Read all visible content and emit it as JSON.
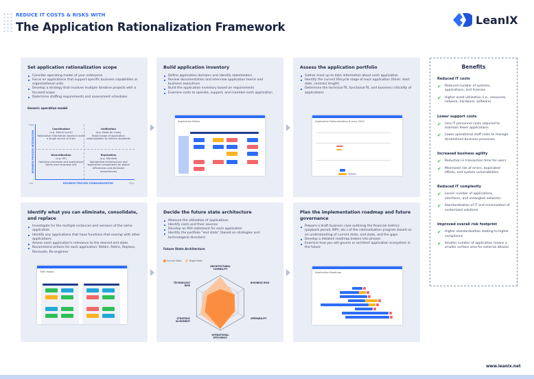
{
  "header": {
    "kicker": "REDUCE IT COSTS & RISKS WITH",
    "title": "The Application Rationalization Framework",
    "logo_text": "LeanIX",
    "accent": "#2e6cf6"
  },
  "panels": [
    {
      "title": "Set application rationalization scope",
      "bullets": [
        "Consider operating model of your enterprise",
        "Focus on applications that support specific business capabilities or organizational units",
        "Develop a strategy that involves multiple iterative projects with a focused scope",
        "Determine staffing requirements and assessment schedules"
      ],
      "sub": "Generic operation model",
      "model": {
        "y_axis": "BUSINESS PROCESS INTEGRATION",
        "x_axis": "BUSINESS PROCESS STANDARDIZATION",
        "high": "High",
        "low": "Low",
        "x_high": "High",
        "quadrants": [
          {
            "name": "Coordination",
            "eg": "(e.g. Merrill Lynch)",
            "desc": "Rationalize information assets to build a single source of truth"
          },
          {
            "name": "Unification",
            "eg": "(e.g. Delta Air Lines)",
            "desc": "Broad scope of application rationalization to enforce standards"
          },
          {
            "name": "Diversification",
            "eg": "(e.g. GE)",
            "desc": "Optimize processes and applications within each business unit"
          },
          {
            "name": "Replication",
            "eg": "(e.g. Marriott)",
            "desc": "Standardize infrastructure and application components for global efficiencies and eliminate redundancies"
          }
        ]
      }
    },
    {
      "title": "Build application inventory",
      "bullets": [
        "Define application domains and identify stakeholders",
        "Review documentation and interview application teams and business executives",
        "Build the application inventory based on requirements",
        "Examine costs to operate, support, and maintain each application"
      ],
      "mini_title": "Application Matrix"
    },
    {
      "title": "Assess the application portfolio",
      "bullets": [
        "Gather most up to date information about each application",
        "Identify the current lifecycle stage of each application (think: start date, contract length)",
        "Determine the technical fit, functional fit, and business criticality of applications"
      ],
      "mini_title": "Application Rationalization Survey 2020"
    },
    {
      "title": "Identify what you can eliminate, consolidate, and replace",
      "bullets": [
        "Investigate for the multiple instances and versions of the same application",
        "Identify any applications that have functions that overlap with other applications",
        "Assess each application's relevance to the desired end state",
        "Recommend actions for each application: Retain, Retire, Replace, Renovate, Re-engineer"
      ],
      "mini_title": "TIME Model"
    },
    {
      "title": "Decide the future state architecture",
      "bullets": [
        "Measure the utilization of applications",
        "Identify costs and their sources",
        "Develop an ROI statement for each application",
        "Identify the portfolio \"end state\" (based on strategies and technological direction)"
      ],
      "sub": "Future State Architecture"
    },
    {
      "title": "Plan the implementation roadmap and future governance",
      "bullets": [
        "Prepare a draft business case outlining the financial metrics (payback period, NPV, etc.) of the rationalization program based on an understanding of current state, end state, and the gaps",
        "Develop a detailed roadmap broken into phases",
        "Examine how you will govern or architect application ecosystem in the future"
      ],
      "mini_title": "Application Roadmap"
    }
  ],
  "chart_data": {
    "type": "radar",
    "title": "Future State Architecture",
    "axes": [
      "ARCHITECTURAL CAPABILITY",
      "BUSINESS RISK",
      "OPERABILITY",
      "OPERATIONAL EFFICIENCY",
      "STRATEGIC ALIGNMENT",
      "TECHNOLOGY RISK"
    ],
    "range": [
      0,
      100
    ],
    "series": [
      {
        "name": "Target State",
        "color": "#fdc49a",
        "values": [
          95,
          60,
          65,
          95,
          85,
          70
        ]
      },
      {
        "name": "Current State",
        "color": "#fb8a3c",
        "values": [
          50,
          60,
          60,
          95,
          65,
          55
        ]
      }
    ]
  },
  "benefits": {
    "title": "Benefits",
    "groups": [
      {
        "title": "Reduced IT costs",
        "items": [
          "Reduced number of systems, applications, and licenses",
          "Higher asset utilization (i.e., resources, network, hardware, software)"
        ]
      },
      {
        "title": "Lower support costs",
        "items": [
          "Less IT personnel costs required to maintain fewer applications",
          "Lower operational staff costs to manage streamlined business processes"
        ]
      },
      {
        "title": "Increased business agility",
        "items": [
          "Reduction in transaction time for users",
          "Minimized risk of errors, duplicated efforts, and system vulnerabilities"
        ]
      },
      {
        "title": "Reduced IT complexity",
        "items": [
          "Lesser number of applications, interfaces, and entangled networks",
          "Standardization of IT and minimization of customized solutions"
        ]
      },
      {
        "title": "Improved overall risk footprint",
        "items": [
          "Higher standardization leading to higher compliance",
          "Smaller number of application means a smaller surface area for external attacks"
        ]
      }
    ]
  },
  "footer": {
    "url": "www.leanix.net"
  }
}
